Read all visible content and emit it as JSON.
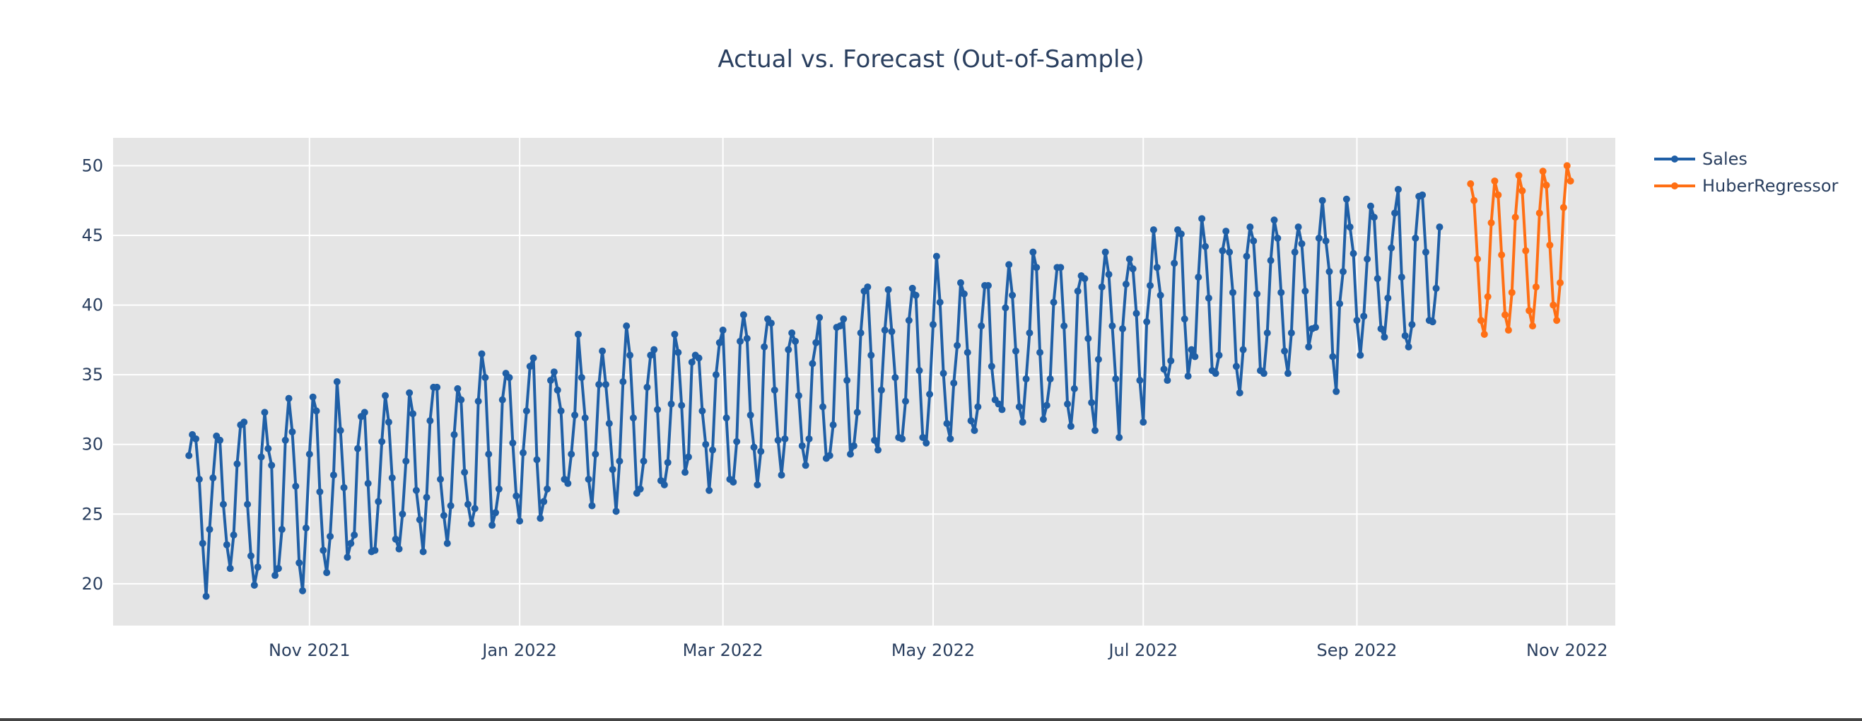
{
  "chart_data": {
    "type": "line",
    "title": "Actual vs. Forecast (Out-of-Sample)",
    "xlabel": "",
    "ylabel": "",
    "x_range": [
      "2021-09-05",
      "2022-11-15"
    ],
    "ylim": [
      17,
      52
    ],
    "y_ticks": [
      20,
      25,
      30,
      35,
      40,
      45,
      50
    ],
    "x_ticks": [
      {
        "date": "2021-11-01",
        "label": "Nov 2021"
      },
      {
        "date": "2022-01-01",
        "label": "Jan 2022"
      },
      {
        "date": "2022-03-01",
        "label": "Mar 2022"
      },
      {
        "date": "2022-05-01",
        "label": "May 2022"
      },
      {
        "date": "2022-07-01",
        "label": "Jul 2022"
      },
      {
        "date": "2022-09-01",
        "label": "Sep 2022"
      },
      {
        "date": "2022-11-01",
        "label": "Nov 2022"
      }
    ],
    "grid": true,
    "legend": "right",
    "series": [
      {
        "name": "Sales",
        "color": "#1f5fa6",
        "start_date": "2021-09-27",
        "values": [
          29.2,
          30.7,
          30.4,
          27.5,
          22.9,
          19.1,
          23.9,
          27.6,
          30.6,
          30.3,
          25.7,
          22.8,
          21.1,
          23.5,
          28.6,
          31.4,
          31.6,
          25.7,
          22.0,
          19.9,
          21.2,
          29.1,
          32.3,
          29.7,
          28.5,
          20.6,
          21.1,
          23.9,
          30.3,
          33.3,
          30.9,
          27.0,
          21.5,
          19.5,
          24.0,
          29.3,
          33.4,
          32.4,
          26.6,
          22.4,
          20.8,
          23.4,
          27.8,
          34.5,
          31.0,
          26.9,
          21.9,
          22.9,
          23.5,
          29.7,
          32.0,
          32.3,
          27.2,
          22.3,
          22.4,
          25.9,
          30.2,
          33.5,
          31.6,
          27.6,
          23.2,
          22.5,
          25.0,
          28.8,
          33.7,
          32.2,
          26.7,
          24.6,
          22.3,
          26.2,
          31.7,
          34.1,
          34.1,
          27.5,
          24.9,
          22.9,
          25.6,
          30.7,
          34.0,
          33.2,
          28.0,
          25.7,
          24.3,
          25.4,
          33.1,
          36.5,
          34.8,
          29.3,
          24.2,
          25.1,
          26.8,
          33.2,
          35.1,
          34.8,
          30.1,
          26.3,
          24.5,
          29.4,
          32.4,
          35.6,
          36.2,
          28.9,
          24.7,
          25.9,
          26.8,
          34.6,
          35.2,
          33.9,
          32.4,
          27.5,
          27.2,
          29.3,
          32.1,
          37.9,
          34.8,
          31.9,
          27.5,
          25.6,
          29.3,
          34.3,
          36.7,
          34.3,
          31.5,
          28.2,
          25.2,
          28.8,
          34.5,
          38.5,
          36.4,
          31.9,
          26.5,
          26.8,
          28.8,
          34.1,
          36.4,
          36.8,
          32.5,
          27.4,
          27.1,
          28.7,
          32.9,
          37.9,
          36.6,
          32.8,
          28.0,
          29.1,
          35.9,
          36.4,
          36.2,
          32.4,
          30.0,
          26.7,
          29.6,
          35.0,
          37.3,
          38.2,
          31.9,
          27.5,
          27.3,
          30.2,
          37.4,
          39.3,
          37.6,
          32.1,
          29.8,
          27.1,
          29.5,
          37.0,
          39.0,
          38.7,
          33.9,
          30.3,
          27.8,
          30.4,
          36.8,
          38.0,
          37.4,
          33.5,
          29.9,
          28.5,
          30.4,
          35.8,
          37.3,
          39.1,
          32.7,
          29.0,
          29.2,
          31.4,
          38.4,
          38.5,
          39.0,
          34.6,
          29.3,
          29.9,
          32.3,
          38.0,
          41.0,
          41.3,
          36.4,
          30.3,
          29.6,
          33.9,
          38.2,
          41.1,
          38.1,
          34.8,
          30.5,
          30.4,
          33.1,
          38.9,
          41.2,
          40.7,
          35.3,
          30.5,
          30.1,
          33.6,
          38.6,
          43.5,
          40.2,
          35.1,
          31.5,
          30.4,
          34.4,
          37.1,
          41.6,
          40.8,
          36.6,
          31.7,
          31.0,
          32.7,
          38.5,
          41.4,
          41.4,
          35.6,
          33.2,
          32.9,
          32.5,
          39.8,
          42.9,
          40.7,
          36.7,
          32.7,
          31.6,
          34.7,
          38.0,
          43.8,
          42.7,
          36.6,
          31.8,
          32.8,
          34.7,
          40.2,
          42.7,
          42.7,
          38.5,
          32.9,
          31.3,
          34.0,
          41.0,
          42.1,
          41.9,
          37.6,
          33.0,
          31.0,
          36.1,
          41.3,
          43.8,
          42.2,
          38.5,
          34.7,
          30.5,
          38.3,
          41.5,
          43.3,
          42.6,
          39.4,
          34.6,
          31.6,
          38.8,
          41.4,
          45.4,
          42.7,
          40.7,
          35.4,
          34.6,
          36.0,
          43.0,
          45.4,
          45.1,
          39.0,
          34.9,
          36.8,
          36.3,
          42.0,
          46.2,
          44.2,
          40.5,
          35.3,
          35.1,
          36.4,
          43.9,
          45.3,
          43.8,
          40.9,
          35.6,
          33.7,
          36.8,
          43.5,
          45.6,
          44.6,
          40.8,
          35.3,
          35.1,
          38.0,
          43.2,
          46.1,
          44.8,
          40.9,
          36.7,
          35.1,
          38.0,
          43.8,
          45.6,
          44.4,
          41.0,
          37.0,
          38.3,
          38.4,
          44.8,
          47.5,
          44.6,
          42.4,
          36.3,
          33.8,
          40.1,
          42.4,
          47.6,
          45.6,
          43.7,
          38.9,
          36.4,
          39.2,
          43.3,
          47.1,
          46.3,
          41.9,
          38.3,
          37.7,
          40.5,
          44.1,
          46.6,
          48.3,
          42.0,
          37.8,
          37.0,
          38.6,
          44.8,
          47.8,
          47.9,
          43.8,
          38.9,
          38.8,
          41.2,
          45.6
        ]
      },
      {
        "name": "HuberRegressor",
        "color": "#ff6f14",
        "start_date": "2022-10-04",
        "values": [
          48.7,
          47.5,
          43.3,
          38.9,
          37.9,
          40.6,
          45.9,
          48.9,
          47.9,
          43.6,
          39.3,
          38.2,
          40.9,
          46.3,
          49.3,
          48.2,
          43.9,
          39.6,
          38.5,
          41.3,
          46.6,
          49.6,
          48.6,
          44.3,
          40.0,
          38.9,
          41.6,
          47.0,
          50.0,
          48.9
        ]
      }
    ]
  }
}
